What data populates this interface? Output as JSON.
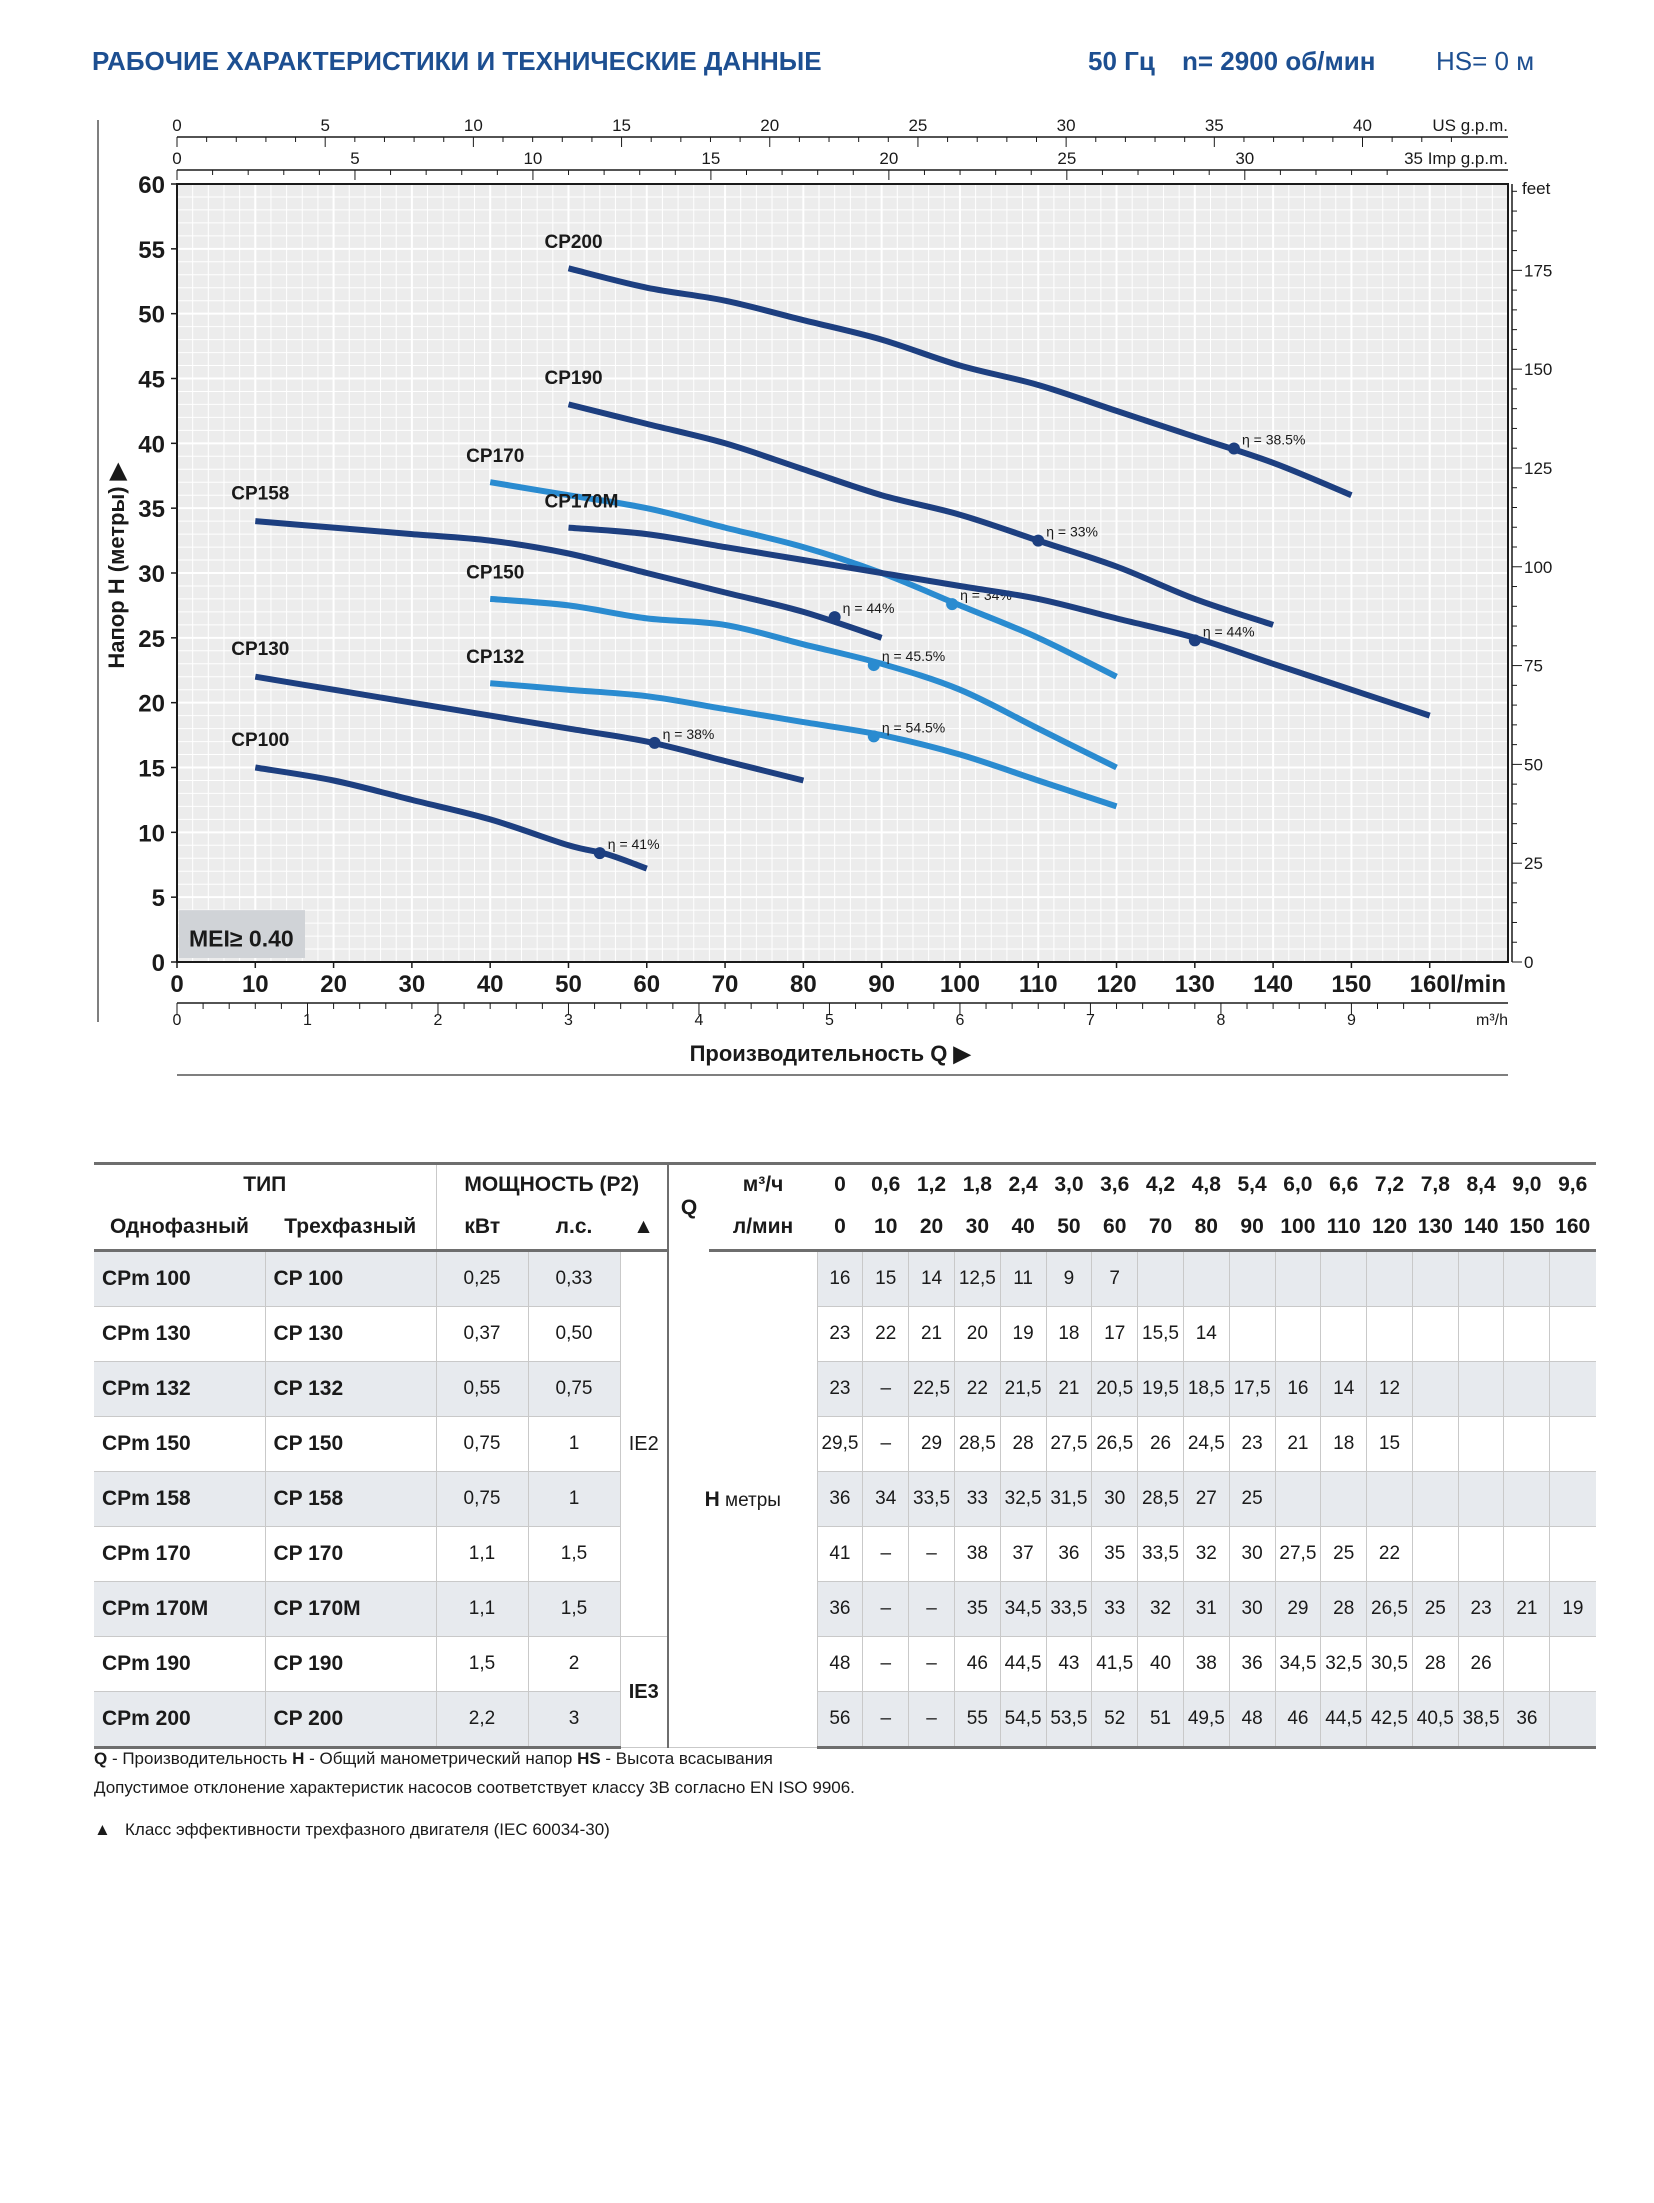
{
  "header": {
    "title": "РАБОЧИЕ ХАРАКТЕРИСТИКИ И ТЕХНИЧЕСКИЕ ДАННЫЕ",
    "frequency": "50 Гц",
    "speed": "n= 2900 об/мин",
    "suction": "HS= 0 м"
  },
  "chart_data": {
    "type": "line",
    "xlabel": "Производительность Q",
    "ylabel": "Напор H (метры)",
    "x_unit": "l/min",
    "x_unit_m3h": "m³/h",
    "us_gpm_unit": "US g.p.m.",
    "imp_gpm_unit": "Imp g.p.m.",
    "feet_unit": "feet",
    "badge": "MEI≥ 0.40",
    "xlim": [
      0,
      170
    ],
    "ylim": [
      0,
      60
    ],
    "x_ticks": [
      0,
      10,
      20,
      30,
      40,
      50,
      60,
      70,
      80,
      90,
      100,
      110,
      120,
      130,
      140,
      150,
      160
    ],
    "y_ticks": [
      0,
      5,
      10,
      15,
      20,
      25,
      30,
      35,
      40,
      45,
      50,
      55,
      60
    ],
    "m3h_ticks": [
      0,
      1,
      2,
      3,
      4,
      5,
      6,
      7,
      8,
      9
    ],
    "us_gpm_ticks": [
      0,
      5,
      10,
      15,
      20,
      25,
      30,
      35,
      40
    ],
    "imp_gpm_ticks": [
      0,
      5,
      10,
      15,
      20,
      25,
      30,
      35
    ],
    "feet_ticks": [
      0,
      25,
      50,
      75,
      100,
      125,
      150,
      175
    ],
    "grid": true,
    "series": [
      {
        "name": "CP100",
        "color": "#1d3f80",
        "x": [
          10,
          20,
          30,
          40,
          50,
          55,
          60
        ],
        "y": [
          15,
          14,
          12.5,
          11,
          9,
          8.3,
          7.2
        ],
        "eff": {
          "x": 54,
          "y": 8.4,
          "label": "η = 41%"
        }
      },
      {
        "name": "CP130",
        "color": "#1d3f80",
        "x": [
          10,
          20,
          30,
          40,
          50,
          60,
          70,
          80
        ],
        "y": [
          22,
          21,
          20,
          19,
          18,
          17,
          15.5,
          14
        ],
        "eff": {
          "x": 61,
          "y": 16.9,
          "label": "η = 38%"
        }
      },
      {
        "name": "CP132",
        "color": "#2a8bd0",
        "x": [
          40,
          50,
          60,
          70,
          80,
          90,
          100,
          110,
          120
        ],
        "y": [
          21.5,
          21,
          20.5,
          19.5,
          18.5,
          17.5,
          16,
          14,
          12
        ],
        "eff": {
          "x": 89,
          "y": 17.4,
          "label": "η = 54.5%"
        }
      },
      {
        "name": "CP150",
        "color": "#2a8bd0",
        "x": [
          40,
          50,
          60,
          70,
          80,
          90,
          100,
          110,
          120
        ],
        "y": [
          28,
          27.5,
          26.5,
          26,
          24.5,
          23,
          21,
          18,
          15
        ],
        "eff": {
          "x": 89,
          "y": 22.9,
          "label": "η = 45.5%"
        }
      },
      {
        "name": "CP158",
        "color": "#1d3f80",
        "x": [
          10,
          20,
          30,
          40,
          50,
          60,
          70,
          80,
          90
        ],
        "y": [
          34,
          33.5,
          33,
          32.5,
          31.5,
          30,
          28.5,
          27,
          25
        ],
        "eff": {
          "x": 84,
          "y": 26.6,
          "label": "η = 44%"
        }
      },
      {
        "name": "CP170",
        "color": "#2a8bd0",
        "x": [
          40,
          50,
          60,
          70,
          80,
          90,
          100,
          110,
          120
        ],
        "y": [
          37,
          36,
          35,
          33.5,
          32,
          30,
          27.5,
          25,
          22
        ],
        "eff": {
          "x": 99,
          "y": 27.6,
          "label": "η = 34%"
        }
      },
      {
        "name": "CP170M",
        "color": "#1d3f80",
        "x": [
          50,
          60,
          70,
          80,
          90,
          100,
          110,
          120,
          130,
          140,
          150,
          160
        ],
        "y": [
          33.5,
          33,
          32,
          31,
          30,
          29,
          28,
          26.5,
          25,
          23,
          21,
          19
        ],
        "eff": {
          "x": 130,
          "y": 24.8,
          "label": "η = 44%"
        }
      },
      {
        "name": "CP190",
        "color": "#1d3f80",
        "x": [
          50,
          60,
          70,
          80,
          90,
          100,
          110,
          120,
          130,
          140
        ],
        "y": [
          43,
          41.5,
          40,
          38,
          36,
          34.5,
          32.5,
          30.5,
          28,
          26
        ],
        "eff": {
          "x": 110,
          "y": 32.5,
          "label": "η = 33%"
        }
      },
      {
        "name": "CP200",
        "color": "#1d3f80",
        "x": [
          50,
          60,
          70,
          80,
          90,
          100,
          110,
          120,
          130,
          140,
          150
        ],
        "y": [
          53.5,
          52,
          51,
          49.5,
          48,
          46,
          44.5,
          42.5,
          40.5,
          38.5,
          36
        ],
        "eff": {
          "x": 135,
          "y": 39.6,
          "label": "η = 38.5%"
        }
      }
    ],
    "label_anchor": [
      {
        "name": "CP100",
        "x": 10,
        "y": 16.2
      },
      {
        "name": "CP130",
        "x": 10,
        "y": 23.2
      },
      {
        "name": "CP132",
        "x": 40,
        "y": 22.6
      },
      {
        "name": "CP150",
        "x": 40,
        "y": 29.1
      },
      {
        "name": "CP158",
        "x": 10,
        "y": 35.2
      },
      {
        "name": "CP170",
        "x": 40,
        "y": 38.1
      },
      {
        "name": "CP170M",
        "x": 50,
        "y": 34.6
      },
      {
        "name": "CP190",
        "x": 50,
        "y": 44.1
      },
      {
        "name": "CP200",
        "x": 50,
        "y": 54.6
      }
    ]
  },
  "table": {
    "head_type": "ТИП",
    "head_power": "МОЩНОСТЬ (P2)",
    "head_single": "Однофазный",
    "head_three": "Трехфазный",
    "head_kw": "кВт",
    "head_hp": "л.с.",
    "head_triangle": "▲",
    "q_label": "Q",
    "q_m3h": "м³/ч",
    "q_lmin": "л/мин",
    "m3h_values": [
      "0",
      "0,6",
      "1,2",
      "1,8",
      "2,4",
      "3,0",
      "3,6",
      "4,2",
      "4,8",
      "5,4",
      "6,0",
      "6,6",
      "7,2",
      "7,8",
      "8,4",
      "9,0",
      "9,6"
    ],
    "lmin_values": [
      "0",
      "10",
      "20",
      "30",
      "40",
      "50",
      "60",
      "70",
      "80",
      "90",
      "100",
      "110",
      "120",
      "130",
      "140",
      "150",
      "160"
    ],
    "h_label": "H",
    "h_unit": "метры",
    "ie2": "IE2",
    "ie3": "IE3",
    "rows": [
      {
        "single": "CPm 100",
        "three": "CP 100",
        "kw": "0,25",
        "hp": "0,33",
        "h": [
          "16",
          "15",
          "14",
          "12,5",
          "11",
          "9",
          "7",
          "",
          "",
          "",
          "",
          "",
          "",
          "",
          "",
          "",
          ""
        ]
      },
      {
        "single": "CPm 130",
        "three": "CP 130",
        "kw": "0,37",
        "hp": "0,50",
        "h": [
          "23",
          "22",
          "21",
          "20",
          "19",
          "18",
          "17",
          "15,5",
          "14",
          "",
          "",
          "",
          "",
          "",
          "",
          "",
          ""
        ]
      },
      {
        "single": "CPm 132",
        "three": "CP 132",
        "kw": "0,55",
        "hp": "0,75",
        "h": [
          "23",
          "–",
          "22,5",
          "22",
          "21,5",
          "21",
          "20,5",
          "19,5",
          "18,5",
          "17,5",
          "16",
          "14",
          "12",
          "",
          "",
          "",
          ""
        ]
      },
      {
        "single": "CPm 150",
        "three": "CP 150",
        "kw": "0,75",
        "hp": "1",
        "h": [
          "29,5",
          "–",
          "29",
          "28,5",
          "28",
          "27,5",
          "26,5",
          "26",
          "24,5",
          "23",
          "21",
          "18",
          "15",
          "",
          "",
          "",
          ""
        ]
      },
      {
        "single": "CPm 158",
        "three": "CP 158",
        "kw": "0,75",
        "hp": "1",
        "h": [
          "36",
          "34",
          "33,5",
          "33",
          "32,5",
          "31,5",
          "30",
          "28,5",
          "27",
          "25",
          "",
          "",
          "",
          "",
          "",
          "",
          ""
        ]
      },
      {
        "single": "CPm 170",
        "three": "CP 170",
        "kw": "1,1",
        "hp": "1,5",
        "h": [
          "41",
          "–",
          "–",
          "38",
          "37",
          "36",
          "35",
          "33,5",
          "32",
          "30",
          "27,5",
          "25",
          "22",
          "",
          "",
          "",
          ""
        ]
      },
      {
        "single": "CPm 170M",
        "three": "CP 170M",
        "kw": "1,1",
        "hp": "1,5",
        "h": [
          "36",
          "–",
          "–",
          "35",
          "34,5",
          "33,5",
          "33",
          "32",
          "31",
          "30",
          "29",
          "28",
          "26,5",
          "25",
          "23",
          "21",
          "19"
        ]
      },
      {
        "single": "CPm 190",
        "three": "CP 190",
        "kw": "1,5",
        "hp": "2",
        "h": [
          "48",
          "–",
          "–",
          "46",
          "44,5",
          "43",
          "41,5",
          "40",
          "38",
          "36",
          "34,5",
          "32,5",
          "30,5",
          "28",
          "26",
          "",
          ""
        ]
      },
      {
        "single": "CPm 200",
        "three": "CP 200",
        "kw": "2,2",
        "hp": "3",
        "h": [
          "56",
          "–",
          "–",
          "55",
          "54,5",
          "53,5",
          "52",
          "51",
          "49,5",
          "48",
          "46",
          "44,5",
          "42,5",
          "40,5",
          "38,5",
          "36",
          ""
        ]
      }
    ]
  },
  "notes": {
    "q_key": "Q",
    "q_text": " - Производительность ",
    "h_key": "H",
    "h_text": " - Общий манометрический напор ",
    "hs_key": "HS",
    "hs_text": " - Высота всасывания",
    "tolerance": "Допустимое отклонение характеристик насосов соответствует классу 3B согласно EN ISO 9906.",
    "triangle": "▲",
    "efficiency_class": "Класс эффективности трехфазного двигателя (IEC 60034-30)"
  }
}
